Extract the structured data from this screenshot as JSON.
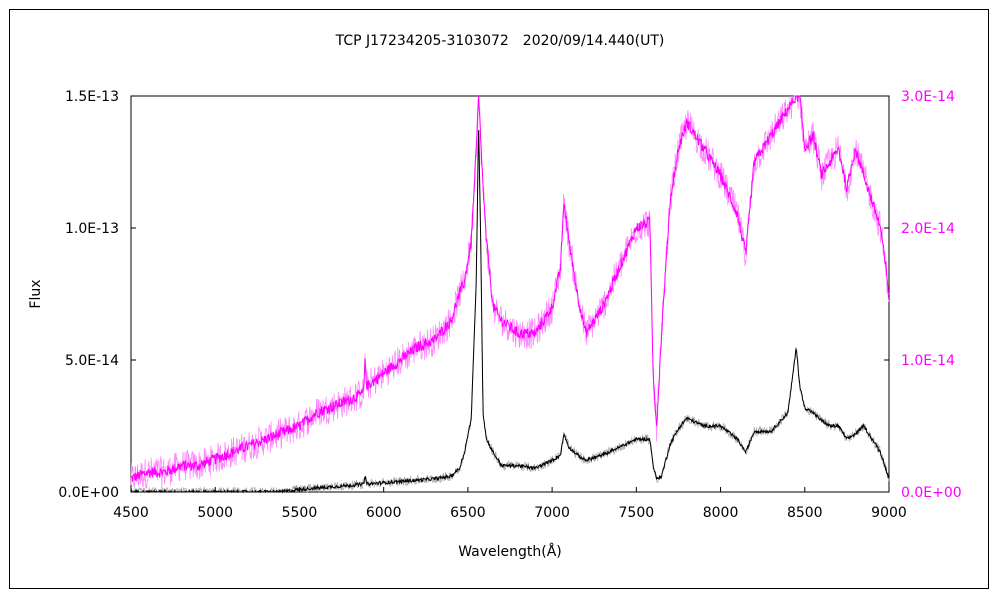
{
  "chart_data": {
    "type": "line",
    "title": "TCP J17234205-3103072　2020/09/14.440(UT)",
    "xlabel": "Wavelength(Å)",
    "ylabel": "Flux",
    "xlim": [
      4500,
      9000
    ],
    "ylim_left": [
      0,
      1.5e-13
    ],
    "ylim_right": [
      0,
      3e-14
    ],
    "x_ticks": [
      "4500",
      "5000",
      "5500",
      "6000",
      "6500",
      "7000",
      "7500",
      "8000",
      "8500",
      "9000"
    ],
    "y_ticks_left": [
      "0.0E+00",
      "5.0E-14",
      "1.0E-13",
      "1.5E-13"
    ],
    "y_ticks_right": [
      "0.0E+00",
      "1.0E-14",
      "2.0E-14",
      "3.0E-14"
    ],
    "grid": false,
    "colors": {
      "left_series": "#000000",
      "left_noise": "#b0b0b0",
      "right_series": "#ff00ff",
      "right_noise": "#ff88ff",
      "right_axis": "#ff00ff"
    },
    "series": [
      {
        "axis": "left",
        "color": "#000000",
        "x": [
          4500,
          4600,
          4700,
          4800,
          4900,
          5000,
          5100,
          5200,
          5300,
          5400,
          5500,
          5600,
          5700,
          5800,
          5880,
          5890,
          5900,
          6000,
          6100,
          6200,
          6300,
          6400,
          6450,
          6480,
          6520,
          6550,
          6563,
          6575,
          6590,
          6610,
          6650,
          6700,
          6800,
          6900,
          7000,
          7050,
          7070,
          7100,
          7150,
          7200,
          7300,
          7400,
          7500,
          7580,
          7600,
          7620,
          7650,
          7700,
          7750,
          7800,
          7900,
          8000,
          8100,
          8150,
          8200,
          8300,
          8400,
          8450,
          8470,
          8500,
          8550,
          8600,
          8650,
          8700,
          8750,
          8800,
          8850,
          8900,
          8950,
          9000
        ],
        "y": [
          0,
          0,
          0,
          0,
          0,
          0,
          0,
          0,
          0,
          1e-16,
          1e-15,
          1.5e-15,
          2e-15,
          2.5e-15,
          3e-15,
          6e-15,
          3e-15,
          3.5e-15,
          4e-15,
          4.5e-15,
          5e-15,
          6e-15,
          9e-15,
          1.5e-14,
          2.8e-14,
          8e-14,
          1.4e-13,
          1e-13,
          3e-14,
          2e-14,
          1.5e-14,
          1e-14,
          1e-14,
          9e-15,
          1.2e-14,
          1.4e-14,
          2.2e-14,
          1.7e-14,
          1.4e-14,
          1.2e-14,
          1.4e-14,
          1.7e-14,
          2e-14,
          2e-14,
          1e-14,
          5e-15,
          6e-15,
          1.8e-14,
          2.4e-14,
          2.8e-14,
          2.5e-14,
          2.5e-14,
          2e-14,
          1.5e-14,
          2.3e-14,
          2.3e-14,
          3e-14,
          5.5e-14,
          4e-14,
          3.2e-14,
          3e-14,
          2.7e-14,
          2.5e-14,
          2.5e-14,
          2e-14,
          2.2e-14,
          2.5e-14,
          2e-14,
          1.5e-14,
          5e-15
        ]
      },
      {
        "axis": "right",
        "color": "#ff00ff",
        "x": [
          4500,
          4600,
          4700,
          4800,
          4900,
          5000,
          5100,
          5200,
          5300,
          5400,
          5500,
          5600,
          5700,
          5800,
          5880,
          5890,
          5900,
          6000,
          6100,
          6200,
          6300,
          6400,
          6450,
          6480,
          6520,
          6550,
          6563,
          6575,
          6590,
          6610,
          6650,
          6700,
          6800,
          6900,
          7000,
          7050,
          7070,
          7100,
          7150,
          7200,
          7300,
          7400,
          7500,
          7580,
          7600,
          7620,
          7650,
          7700,
          7750,
          7800,
          7900,
          8000,
          8100,
          8150,
          8200,
          8300,
          8400,
          8450,
          8470,
          8500,
          8550,
          8600,
          8650,
          8700,
          8750,
          8800,
          8850,
          8900,
          8950,
          9000
        ],
        "y": [
          1e-15,
          1.5e-15,
          1.5e-15,
          2e-15,
          2e-15,
          2.5e-15,
          3e-15,
          3.5e-15,
          4e-15,
          4.5e-15,
          5e-15,
          6e-15,
          6.5e-15,
          7e-15,
          7.5e-15,
          1e-14,
          8e-15,
          9e-15,
          1e-14,
          1.1e-14,
          1.15e-14,
          1.3e-14,
          1.5e-14,
          1.6e-14,
          1.9e-14,
          2.6e-14,
          3e-14,
          2.7e-14,
          2.3e-14,
          1.9e-14,
          1.4e-14,
          1.3e-14,
          1.2e-14,
          1.2e-14,
          1.4e-14,
          1.7e-14,
          2.2e-14,
          1.9e-14,
          1.5e-14,
          1.2e-14,
          1.4e-14,
          1.7e-14,
          2e-14,
          2.05e-14,
          9e-15,
          5e-15,
          1.2e-14,
          2.2e-14,
          2.6e-14,
          2.8e-14,
          2.6e-14,
          2.4e-14,
          2.1e-14,
          1.8e-14,
          2.5e-14,
          2.7e-14,
          2.9e-14,
          3e-14,
          3e-14,
          2.6e-14,
          2.7e-14,
          2.4e-14,
          2.5e-14,
          2.6e-14,
          2.3e-14,
          2.6e-14,
          2.4e-14,
          2.2e-14,
          2e-14,
          1.5e-14
        ]
      }
    ]
  }
}
